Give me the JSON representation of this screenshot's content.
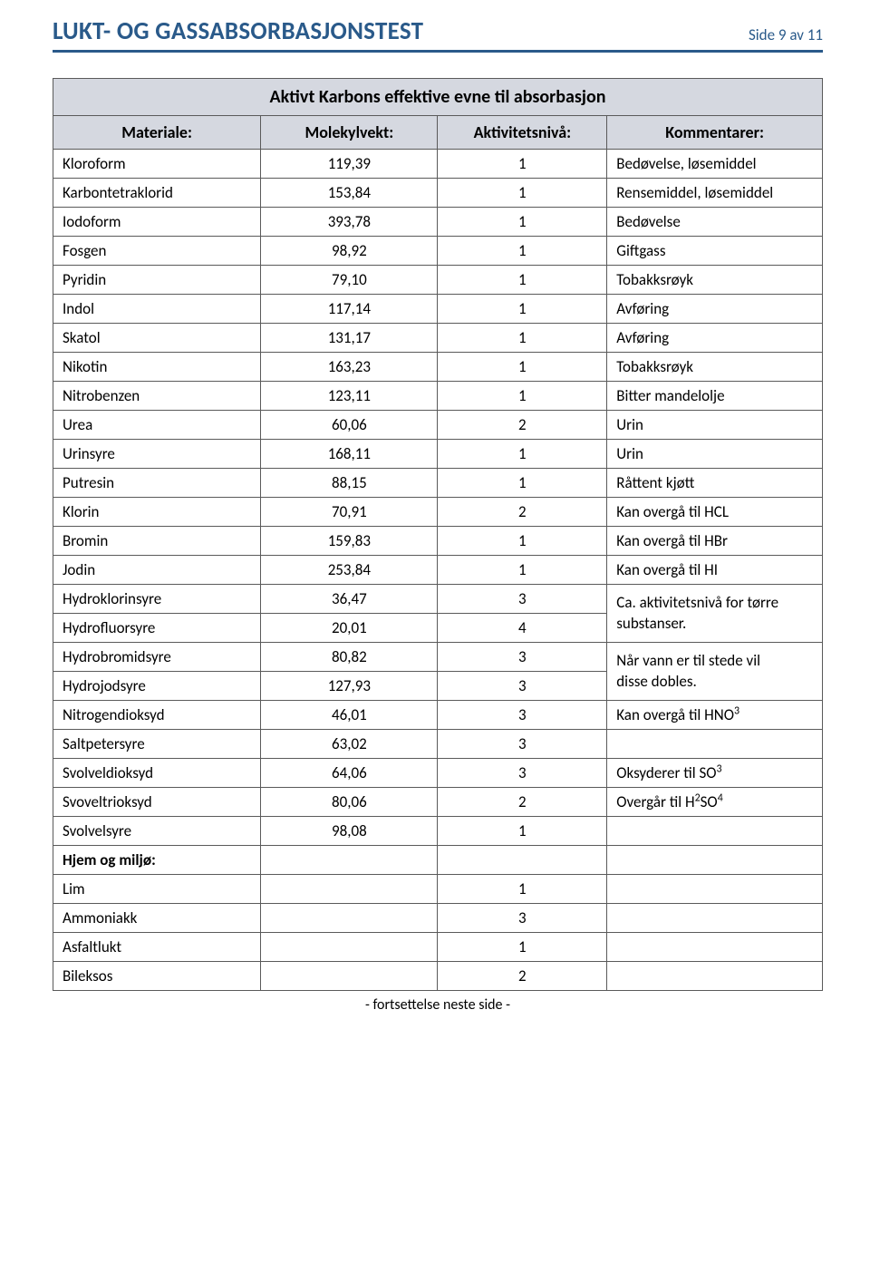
{
  "colors": {
    "accent": "#2a5a8a",
    "header_bg": "#d5d8e0",
    "border": "#5a5a5a",
    "text": "#000000",
    "page_bg": "#ffffff"
  },
  "header": {
    "title": "LUKT- OG GASSABSORBASJONSTEST",
    "page_label": "Side 9 av 11"
  },
  "table": {
    "banner": "Aktivt Karbons effektive evne til absorbasjon",
    "columns": [
      "Materiale:",
      "Molekylvekt:",
      "Aktivitetsnivå:",
      "Kommentarer:"
    ]
  },
  "merged_comments": {
    "hydro1": [
      "Ca. aktivitetsnivå for tørre",
      "substanser."
    ],
    "hydro2": [
      "Når vann er til stede vil",
      "disse dobles."
    ]
  },
  "rows": [
    {
      "material": "Kloroform",
      "mw": "119,39",
      "act": "1",
      "comment": "Bedøvelse, løsemiddel"
    },
    {
      "material": "Karbontetraklorid",
      "mw": "153,84",
      "act": "1",
      "comment": "Rensemiddel, løsemiddel"
    },
    {
      "material": "Iodoform",
      "mw": "393,78",
      "act": "1",
      "comment": "Bedøvelse"
    },
    {
      "material": "Fosgen",
      "mw": "98,92",
      "act": "1",
      "comment": "Giftgass"
    },
    {
      "material": "Pyridin",
      "mw": "79,10",
      "act": "1",
      "comment": "Tobakksrøyk"
    },
    {
      "material": "Indol",
      "mw": "117,14",
      "act": "1",
      "comment": "Avføring"
    },
    {
      "material": "Skatol",
      "mw": "131,17",
      "act": "1",
      "comment": "Avføring"
    },
    {
      "material": "Nikotin",
      "mw": "163,23",
      "act": "1",
      "comment": "Tobakksrøyk"
    },
    {
      "material": "Nitrobenzen",
      "mw": "123,11",
      "act": "1",
      "comment": "Bitter mandelolje"
    },
    {
      "material": "Urea",
      "mw": "60,06",
      "act": "2",
      "comment": "Urin"
    },
    {
      "material": "Urinsyre",
      "mw": "168,11",
      "act": "1",
      "comment": "Urin"
    },
    {
      "material": "Putresin",
      "mw": "88,15",
      "act": "1",
      "comment": "Råttent kjøtt"
    },
    {
      "material": "Klorin",
      "mw": "70,91",
      "act": "2",
      "comment": "Kan overgå til HCL"
    },
    {
      "material": "Bromin",
      "mw": "159,83",
      "act": "1",
      "comment": "Kan overgå til HBr"
    },
    {
      "material": "Jodin",
      "mw": "253,84",
      "act": "1",
      "comment": "Kan overgå til HI"
    },
    {
      "material": "Hydroklorinsyre",
      "mw": "36,47",
      "act": "3",
      "merge_start": "hydro1",
      "merge_rows": 2
    },
    {
      "material": "Hydrofluorsyre",
      "mw": "20,01",
      "act": "4",
      "merge_cont": true
    },
    {
      "material": "Hydrobromidsyre",
      "mw": "80,82",
      "act": "3",
      "merge_start": "hydro2",
      "merge_rows": 2
    },
    {
      "material": "Hydrojodsyre",
      "mw": "127,93",
      "act": "3",
      "merge_cont": true
    },
    {
      "material": "Nitrogendioksyd",
      "mw": "46,01",
      "act": "3",
      "comment": "Kan overgå til HNO",
      "sup": "3"
    },
    {
      "material": "Saltpetersyre",
      "mw": "63,02",
      "act": "3",
      "comment": ""
    },
    {
      "material": "Svolveldioksyd",
      "mw": "64,06",
      "act": "3",
      "comment": "Oksyderer til SO",
      "sup": "3"
    },
    {
      "material": "Svoveltrioksyd",
      "mw": "80,06",
      "act": "2",
      "comment_html": "Overgår til H<sup>2</sup>SO<sup>4</sup>"
    },
    {
      "material": "Svolvelsyre",
      "mw": "98,08",
      "act": "1",
      "comment": ""
    },
    {
      "section": "Hjem og miljø:"
    },
    {
      "material": "Lim",
      "mw": "",
      "act": "1",
      "comment": ""
    },
    {
      "material": "Ammoniakk",
      "mw": "",
      "act": "3",
      "comment": ""
    },
    {
      "material": "Asfaltlukt",
      "mw": "",
      "act": "1",
      "comment": ""
    },
    {
      "material": "Bileksos",
      "mw": "",
      "act": "2",
      "comment": ""
    }
  ],
  "footer": {
    "continuation": "-  fortsettelse neste side  -"
  }
}
